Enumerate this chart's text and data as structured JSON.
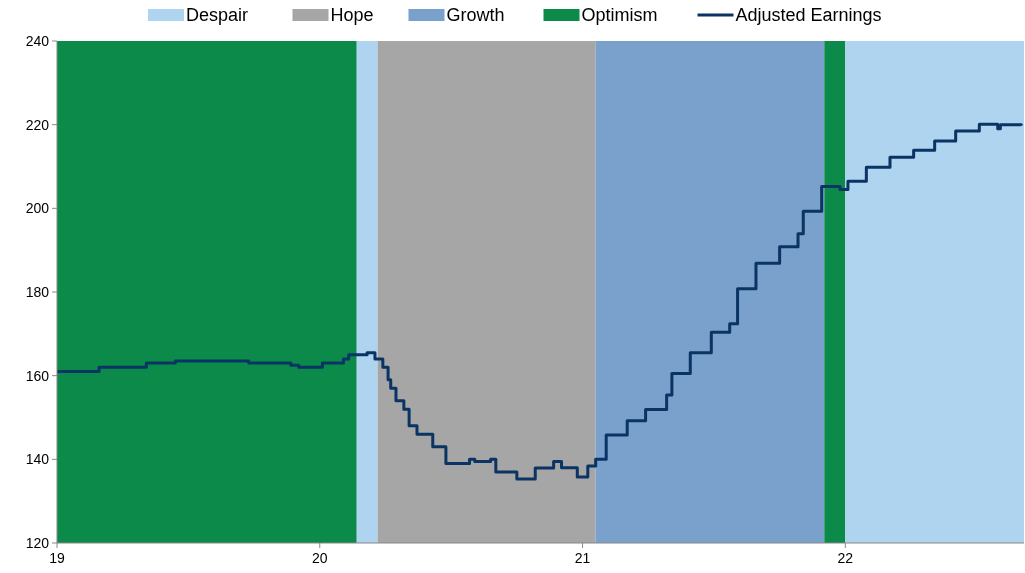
{
  "chart_data": {
    "type": "step",
    "xlim": [
      19,
      22.68
    ],
    "xticks": [
      19,
      20,
      21,
      22
    ],
    "ylim": [
      120,
      240
    ],
    "yticks": [
      120,
      140,
      160,
      180,
      200,
      220,
      240
    ],
    "grid": false,
    "legend": "top",
    "marker": "none",
    "line_style": "solid",
    "bands": [
      {
        "axis": "x",
        "from": 20.14,
        "to": 20.22,
        "label": "Despair",
        "color": "#aed4f0"
      },
      {
        "axis": "x",
        "from": 20.22,
        "to": 21.05,
        "label": "Hope",
        "color": "#a6a6a6"
      },
      {
        "axis": "x",
        "from": 21.05,
        "to": 21.92,
        "label": "Growth",
        "color": "#7aa0cc"
      },
      {
        "axis": "x",
        "from": 19,
        "to": 20.14,
        "label": "Optimism",
        "color": "#0b8a4a"
      },
      {
        "axis": "x",
        "from": 21.92,
        "to": 22.0,
        "color": "#0b8a4a"
      },
      {
        "axis": "x",
        "from": 22.0,
        "to": 22.68,
        "color": "#aed4f0"
      }
    ],
    "series": [
      {
        "name": "Adjusted Earnings",
        "color": "#0a3463",
        "x": [
          19.0,
          19.09,
          19.16,
          19.34,
          19.45,
          19.73,
          19.89,
          19.92,
          20.01,
          20.09,
          20.11,
          20.18,
          20.21,
          20.24,
          20.26,
          20.27,
          20.29,
          20.32,
          20.34,
          20.37,
          20.43,
          20.48,
          20.57,
          20.59,
          20.65,
          20.67,
          20.75,
          20.82,
          20.89,
          20.92,
          20.98,
          21.02,
          21.05,
          21.09,
          21.17,
          21.24,
          21.32,
          21.34,
          21.41,
          21.49,
          21.56,
          21.59,
          21.66,
          21.75,
          21.82,
          21.84,
          21.91,
          21.98,
          22.01,
          22.08,
          22.17,
          22.26,
          22.34,
          22.42,
          22.51,
          22.58,
          22.59,
          22.67
        ],
        "values": [
          161,
          161,
          162,
          163,
          163.5,
          163,
          162.5,
          162,
          163,
          164,
          165,
          165.5,
          164,
          162,
          159,
          157,
          154,
          152,
          148,
          146,
          143,
          139,
          140,
          139.5,
          140,
          137,
          135.3,
          137.9,
          139.5,
          138,
          135.8,
          138.4,
          140,
          145.8,
          149.2,
          151.9,
          155.4,
          160.5,
          165.5,
          170.4,
          172.4,
          180.8,
          186.9,
          190.8,
          193.9,
          199.3,
          205.2,
          204.5,
          206.5,
          209.8,
          212.2,
          213.9,
          216.1,
          218.5,
          220.1,
          219,
          220,
          219.8
        ]
      }
    ]
  }
}
